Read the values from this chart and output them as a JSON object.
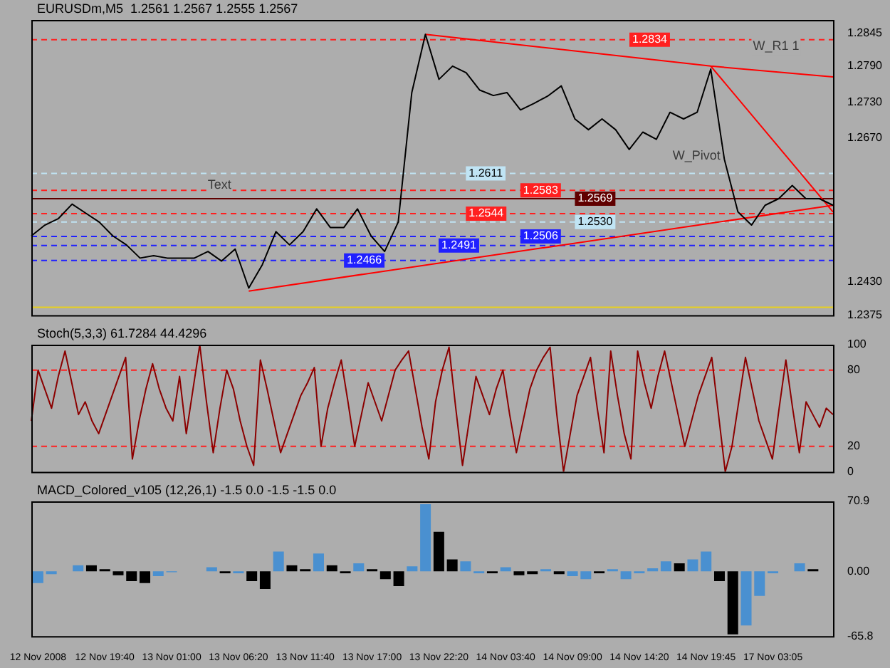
{
  "chart_data": [
    {
      "type": "line",
      "title": "EURUSDm,M5  1.2561 1.2567 1.2555 1.2567",
      "marker": "none",
      "tick_labels": "y",
      "categories": [
        null,
        null,
        null,
        null,
        null,
        null,
        null,
        null,
        null,
        null,
        null,
        null,
        null,
        null,
        null,
        null,
        null,
        null,
        null,
        null,
        null,
        null,
        null,
        null,
        null,
        null,
        null,
        null,
        null,
        null,
        null,
        null,
        null,
        null,
        null,
        null,
        null,
        null,
        null,
        null,
        null,
        null,
        null,
        null,
        null,
        null,
        null,
        null,
        null,
        null,
        null,
        null,
        null,
        null,
        null,
        null,
        null,
        null,
        null,
        null
      ],
      "series": [
        {
          "color": "#000000",
          "values": [
            1.2507,
            1.2525,
            1.2536,
            1.256,
            1.2545,
            1.253,
            1.2507,
            1.2492,
            1.247,
            1.2474,
            1.247,
            1.247,
            1.247,
            1.2481,
            1.2465,
            1.2485,
            1.242,
            1.2459,
            1.2514,
            1.2492,
            1.2514,
            1.2552,
            1.2521,
            1.2521,
            1.2552,
            1.2507,
            1.2481,
            1.253,
            1.2746,
            1.2843,
            1.2768,
            1.279,
            1.2779,
            1.275,
            1.2741,
            1.2746,
            1.2717,
            1.2728,
            1.274,
            1.2757,
            1.2702,
            1.2684,
            1.2702,
            1.2684,
            1.2651,
            1.268,
            1.2668,
            1.2713,
            1.2702,
            1.2713,
            1.2785,
            1.2635,
            1.2547,
            1.2525,
            1.2558,
            1.2569,
            1.2591,
            1.2569,
            1.2569,
            1.2558
          ]
        },
        {
          "color": "#ff0000",
          "values": [
            null,
            null,
            null,
            null,
            null,
            null,
            null,
            null,
            null,
            null,
            null,
            null,
            null,
            null,
            null,
            null,
            null,
            null,
            null,
            null,
            null,
            null,
            null,
            null,
            null,
            null,
            null,
            null,
            null,
            1.2843,
            null,
            null,
            null,
            null,
            null,
            null,
            null,
            null,
            null,
            null,
            null,
            null,
            null,
            null,
            null,
            null,
            null,
            null,
            null,
            null,
            1.279,
            null,
            null,
            null,
            null,
            null,
            null,
            null,
            null,
            1.2772
          ]
        },
        {
          "color": "#ff0000",
          "values": [
            null,
            null,
            null,
            null,
            null,
            null,
            null,
            null,
            null,
            null,
            null,
            null,
            null,
            null,
            null,
            null,
            null,
            null,
            null,
            null,
            null,
            null,
            null,
            null,
            null,
            null,
            null,
            null,
            null,
            null,
            null,
            null,
            null,
            null,
            null,
            null,
            null,
            null,
            null,
            null,
            null,
            null,
            null,
            null,
            null,
            null,
            null,
            null,
            null,
            null,
            1.279,
            null,
            null,
            null,
            null,
            null,
            null,
            null,
            null,
            1.2547
          ]
        },
        {
          "color": "#ff0000",
          "values": [
            null,
            null,
            null,
            null,
            null,
            null,
            null,
            null,
            null,
            null,
            null,
            null,
            null,
            null,
            null,
            null,
            1.2415,
            null,
            null,
            null,
            null,
            null,
            null,
            null,
            null,
            null,
            null,
            null,
            null,
            null,
            null,
            null,
            null,
            null,
            null,
            null,
            null,
            null,
            null,
            null,
            null,
            null,
            null,
            null,
            null,
            null,
            null,
            null,
            null,
            null,
            null,
            null,
            null,
            null,
            null,
            null,
            null,
            null,
            null,
            1.2558
          ]
        }
      ],
      "ylim": [
        1.2375,
        1.2867
      ],
      "yticks": [
        1.2375,
        {
          "value": 1.243,
          "label": "1.2430"
        },
        {
          "value": 1.267,
          "label": "1.2670"
        },
        {
          "value": 1.273,
          "label": "1.2730"
        },
        {
          "value": 1.279,
          "label": "1.2790"
        },
        1.2845
      ],
      "ref_lines": [
        {
          "axis": "y",
          "value": 1.2834,
          "label": "1.2834",
          "color": "#ff2020",
          "line_style": "dashed"
        },
        {
          "axis": "y",
          "value": 1.2611,
          "label": "1.2611",
          "color": "#c0e4f4",
          "line_style": "dashed"
        },
        {
          "axis": "y",
          "value": 1.2583,
          "label": "1.2583",
          "color": "#ff2020",
          "line_style": "dashed"
        },
        {
          "axis": "y",
          "value": 1.2569,
          "label": "1.2569",
          "color": "#600000",
          "line_style": "solid"
        },
        {
          "axis": "y",
          "value": 1.2544,
          "label": "1.2544",
          "color": "#ff2020",
          "line_style": "dashed"
        },
        {
          "axis": "y",
          "value": 1.253,
          "label": "1.2530",
          "color": "#c0e4f4",
          "line_style": "dashed"
        },
        {
          "axis": "y",
          "value": 1.2506,
          "label": "1.2506",
          "color": "#2020ff",
          "line_style": "dashed"
        },
        {
          "axis": "y",
          "value": 1.2491,
          "label": "1.2491",
          "color": "#2020ff",
          "line_style": "dashed"
        },
        {
          "axis": "y",
          "value": 1.2466,
          "label": "1.2466",
          "color": "#2020ff",
          "line_style": "dashed"
        },
        {
          "axis": "y",
          "value": 1.2388,
          "color": "#e8d020",
          "line_style": "solid"
        }
      ],
      "annotations": [
        "W_R1 1",
        "W_Pivot",
        "Text"
      ]
    },
    {
      "type": "line",
      "title": "Stoch(5,3,3) 61.7284 44.4296",
      "marker": "none",
      "tick_labels": "y",
      "categories": [
        null,
        null,
        null,
        null,
        null,
        null,
        null,
        null,
        null,
        null,
        null,
        null,
        null,
        null,
        null,
        null,
        null,
        null,
        null,
        null,
        null,
        null,
        null,
        null,
        null,
        null,
        null,
        null,
        null,
        null,
        null,
        null,
        null,
        null,
        null,
        null,
        null,
        null,
        null,
        null,
        null,
        null,
        null,
        null,
        null,
        null,
        null,
        null,
        null,
        null,
        null,
        null,
        null,
        null,
        null,
        null,
        null,
        null,
        null,
        null,
        null,
        null,
        null,
        null,
        null,
        null,
        null,
        null,
        null,
        null,
        null,
        null,
        null,
        null,
        null,
        null,
        null,
        null,
        null,
        null,
        null,
        null,
        null,
        null,
        null,
        null,
        null,
        null,
        null,
        null,
        null,
        null,
        null,
        null,
        null,
        null,
        null,
        null,
        null,
        null,
        null,
        null,
        null,
        null,
        null,
        null,
        null,
        null,
        null,
        null,
        null,
        null,
        null,
        null,
        null,
        null,
        null,
        null,
        null,
        null
      ],
      "series": [
        {
          "color": "#8b0000",
          "values": [
            40,
            80,
            65,
            50,
            75,
            95,
            70,
            45,
            55,
            40,
            30,
            45,
            60,
            75,
            90,
            10,
            40,
            65,
            85,
            65,
            50,
            40,
            75,
            30,
            65,
            100,
            55,
            15,
            50,
            80,
            65,
            40,
            20,
            5,
            88,
            65,
            40,
            15,
            30,
            45,
            60,
            70,
            82,
            20,
            50,
            70,
            88,
            55,
            20,
            45,
            70,
            55,
            40,
            60,
            80,
            88,
            95,
            65,
            35,
            10,
            55,
            80,
            98,
            50,
            5,
            40,
            75,
            60,
            45,
            65,
            80,
            45,
            15,
            40,
            65,
            80,
            90,
            98,
            45,
            0,
            30,
            60,
            75,
            90,
            50,
            15,
            95,
            60,
            30,
            10,
            95,
            70,
            50,
            75,
            95,
            70,
            45,
            20,
            40,
            60,
            75,
            90,
            45,
            0,
            20,
            55,
            90,
            65,
            40,
            25,
            10,
            50,
            88,
            50,
            15,
            55,
            45,
            35,
            50,
            45
          ]
        }
      ],
      "ylim": [
        0,
        100
      ],
      "yticks": [
        0,
        20,
        80,
        100
      ],
      "ref_lines": [
        {
          "axis": "y",
          "value": 80,
          "color": "#ff2020",
          "line_style": "dashed"
        },
        {
          "axis": "y",
          "value": 20,
          "color": "#ff2020",
          "line_style": "dashed"
        }
      ]
    },
    {
      "type": "bar",
      "title": "MACD_Colored_v105 (12,26,1) -1.5 0.0 -1.5 -1.5 0.0",
      "categories": [
        "12 Nov 2008",
        null,
        null,
        null,
        null,
        "12 Nov 19:40",
        null,
        null,
        null,
        null,
        "13 Nov 01:00",
        null,
        null,
        null,
        null,
        "13 Nov 06:20",
        null,
        null,
        null,
        null,
        "13 Nov 11:40",
        null,
        null,
        null,
        null,
        "13 Nov 17:00",
        null,
        null,
        null,
        null,
        "13 Nov 22:20",
        null,
        null,
        null,
        null,
        "14 Nov 03:40",
        null,
        null,
        null,
        null,
        "14 Nov 09:00",
        null,
        null,
        null,
        null,
        "14 Nov 14:20",
        null,
        null,
        null,
        null,
        "14 Nov 19:45",
        null,
        null,
        null,
        null,
        "17 Nov 03:05",
        null,
        null,
        null,
        null
      ],
      "values": [
        -12,
        -3,
        0,
        6,
        6,
        2,
        -4,
        -10,
        -12,
        -5,
        -1,
        0,
        0,
        4,
        -2,
        -2,
        -10,
        -18,
        20,
        6,
        2,
        18,
        6,
        -2,
        8,
        2,
        -8,
        -15,
        5,
        68,
        40,
        12,
        10,
        -2,
        -2,
        4,
        -4,
        -3,
        2,
        -3,
        -5,
        -8,
        -2,
        2,
        -8,
        -2,
        3,
        10,
        8,
        12,
        20,
        -10,
        -64,
        -55,
        -25,
        -2,
        0,
        8,
        2,
        0
      ],
      "colors": [
        "#4a90d0",
        "#4a90d0",
        "#000000",
        "#4a90d0",
        "#000000",
        "#000000",
        "#000000",
        "#000000",
        "#000000",
        "#4a90d0",
        "#4a90d0",
        "#4a90d0",
        "#4a90d0",
        "#4a90d0",
        "#000000",
        "#4a90d0",
        "#000000",
        "#000000",
        "#4a90d0",
        "#000000",
        "#000000",
        "#4a90d0",
        "#000000",
        "#000000",
        "#4a90d0",
        "#000000",
        "#000000",
        "#000000",
        "#4a90d0",
        "#4a90d0",
        "#000000",
        "#000000",
        "#4a90d0",
        "#4a90d0",
        "#000000",
        "#4a90d0",
        "#000000",
        "#000000",
        "#4a90d0",
        "#000000",
        "#4a90d0",
        "#4a90d0",
        "#000000",
        "#4a90d0",
        "#4a90d0",
        "#4a90d0",
        "#4a90d0",
        "#4a90d0",
        "#000000",
        "#4a90d0",
        "#4a90d0",
        "#000000",
        "#000000",
        "#4a90d0",
        "#4a90d0",
        "#4a90d0",
        "#4a90d0",
        "#4a90d0",
        "#000000",
        "#000000"
      ],
      "ylim": [
        -65.8,
        70.9
      ],
      "yticks": [
        -65.8,
        {
          "value": 0,
          "label": "0.00"
        },
        70.9
      ]
    }
  ]
}
